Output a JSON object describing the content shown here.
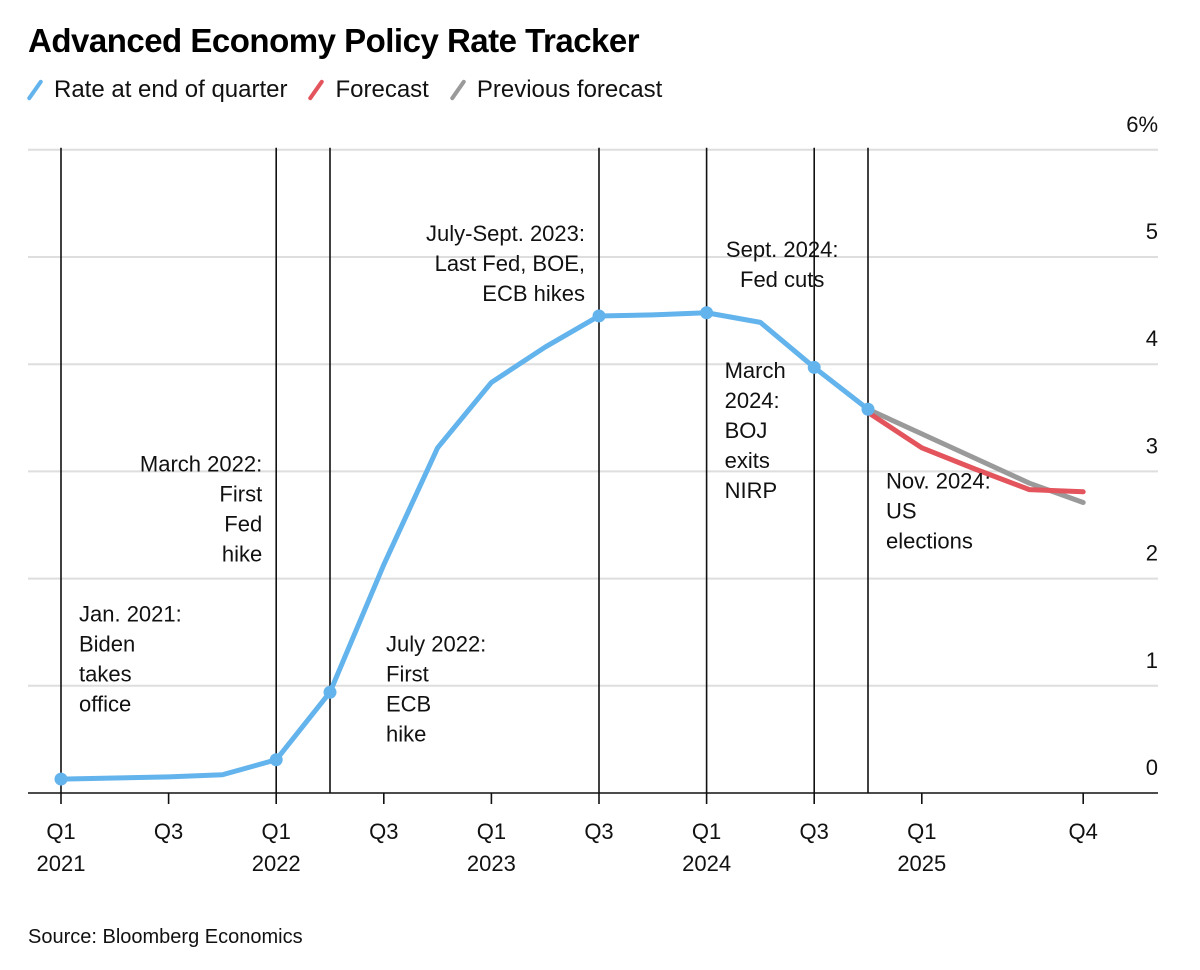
{
  "title": "Advanced Economy Policy Rate Tracker",
  "legend": [
    {
      "label": "Rate at end of quarter",
      "color": "#63b3ed"
    },
    {
      "label": "Forecast",
      "color": "#e3545c"
    },
    {
      "label": "Previous forecast",
      "color": "#9a9a9a"
    }
  ],
  "source": "Source: Bloomberg Economics",
  "chart_data": {
    "type": "line",
    "title": "Advanced Economy Policy Rate Tracker",
    "xlabel": "",
    "ylabel": "",
    "ylim": [
      0,
      6
    ],
    "yticks": [
      0,
      1,
      2,
      3,
      4,
      5,
      6
    ],
    "ytick_labels": [
      "0",
      "1",
      "2",
      "3",
      "4",
      "5",
      "6%"
    ],
    "y_axis_position": "right",
    "grid": true,
    "legend_position": "top-left",
    "x": [
      "Q1 2021",
      "Q2 2021",
      "Q3 2021",
      "Q4 2021",
      "Q1 2022",
      "Q2 2022",
      "Q3 2022",
      "Q4 2022",
      "Q1 2023",
      "Q2 2023",
      "Q3 2023",
      "Q4 2023",
      "Q1 2024",
      "Q2 2024",
      "Q3 2024",
      "Q4 2024",
      "Q1 2025",
      "Q2 2025",
      "Q3 2025",
      "Q4 2025"
    ],
    "xticks": [
      {
        "quarter_index": 0,
        "line1": "Q1",
        "line2": "2021"
      },
      {
        "quarter_index": 2,
        "line1": "Q3",
        "line2": ""
      },
      {
        "quarter_index": 4,
        "line1": "Q1",
        "line2": "2022"
      },
      {
        "quarter_index": 6,
        "line1": "Q3",
        "line2": ""
      },
      {
        "quarter_index": 8,
        "line1": "Q1",
        "line2": "2023"
      },
      {
        "quarter_index": 10,
        "line1": "Q3",
        "line2": ""
      },
      {
        "quarter_index": 12,
        "line1": "Q1",
        "line2": "2024"
      },
      {
        "quarter_index": 14,
        "line1": "Q3",
        "line2": ""
      },
      {
        "quarter_index": 16,
        "line1": "Q1",
        "line2": "2025"
      },
      {
        "quarter_index": 19,
        "line1": "Q4",
        "line2": ""
      }
    ],
    "series": [
      {
        "name": "Rate at end of quarter",
        "color": "#63b3ed",
        "start_index": 0,
        "values": [
          0.13,
          0.14,
          0.15,
          0.17,
          0.31,
          0.94,
          2.13,
          3.22,
          3.83,
          4.16,
          4.45,
          4.46,
          4.48,
          4.39,
          3.97,
          3.58
        ],
        "marker_indices": [
          0,
          4,
          5,
          10,
          12,
          14,
          15
        ]
      },
      {
        "name": "Forecast",
        "color": "#e3545c",
        "start_index": 15,
        "values": [
          3.55,
          3.22,
          3.02,
          2.83,
          2.81
        ]
      },
      {
        "name": "Previous forecast",
        "color": "#9a9a9a",
        "start_index": 15,
        "values": [
          3.58,
          3.35,
          3.12,
          2.89,
          2.71
        ]
      }
    ],
    "annotations": [
      {
        "quarter_index": 0.0,
        "lines": [
          "Jan. 2021:",
          "Biden",
          "takes",
          "office"
        ],
        "align": "left",
        "y_value": 1.6
      },
      {
        "quarter_index": 4.0,
        "lines": [
          "March 2022:",
          "First",
          "Fed",
          "hike"
        ],
        "align": "right",
        "y_value": 3.0
      },
      {
        "quarter_index": 5.0,
        "lines": [
          "July 2022:",
          "First",
          "ECB",
          "hike"
        ],
        "align": "left",
        "y_value": 1.32,
        "offset_quarters": 1
      },
      {
        "quarter_index": 10.0,
        "lines": [
          "July-Sept. 2023:",
          "Last Fed, BOE,",
          "ECB hikes"
        ],
        "align": "right",
        "y_value": 5.15
      },
      {
        "quarter_index": 12.0,
        "lines": [
          "March",
          "2024:",
          "BOJ",
          "exits",
          "NIRP"
        ],
        "align": "left",
        "y_value": 3.87
      },
      {
        "quarter_index": 14.0,
        "lines": [
          "Sept. 2024:",
          "Fed cuts"
        ],
        "align": "center",
        "y_value": 5.0
      },
      {
        "quarter_index": 15.0,
        "lines": [
          "Nov. 2024:",
          "US",
          "elections"
        ],
        "align": "left",
        "y_value": 2.84
      }
    ],
    "event_lines_quarter_index": [
      0,
      4,
      5,
      10,
      12,
      14,
      15
    ]
  }
}
